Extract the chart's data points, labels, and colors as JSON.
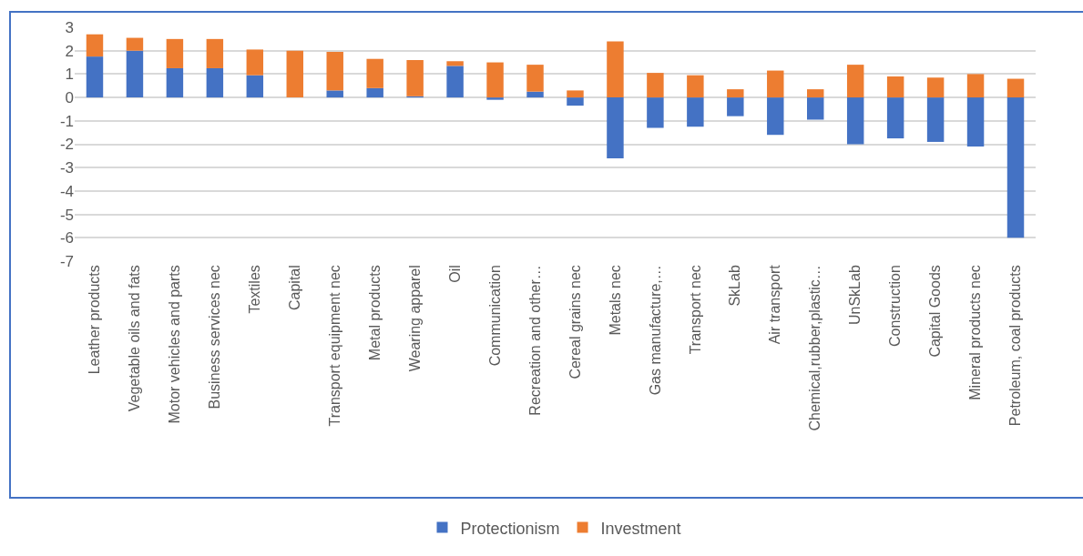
{
  "chart_data": {
    "type": "bar",
    "stacked": true,
    "categories": [
      "Leather products",
      "Vegetable oils and fats",
      "Motor vehicles and parts",
      "Business services nec",
      "Textiles",
      "Capital",
      "Transport equipment nec",
      "Metal products",
      "Wearing apparel",
      "Oil",
      "Communication",
      "Recreation and other…",
      "Cereal grains nec",
      "Metals nec",
      "Gas manufacture,…",
      "Transport nec",
      "SkLab",
      "Air transport",
      "Chemical,rubber,plastic…",
      "UnSkLab",
      "Construction",
      "Capital Goods",
      "Mineral products nec",
      "Petroleum, coal products"
    ],
    "series": [
      {
        "name": "Protectionism",
        "color": "#4472c4",
        "values": [
          1.75,
          2.0,
          1.25,
          1.25,
          0.95,
          0,
          0.3,
          0.4,
          0.05,
          1.35,
          -0.1,
          0.25,
          -0.35,
          -2.6,
          -1.3,
          -1.25,
          -0.8,
          -1.6,
          -0.95,
          -2.0,
          -1.75,
          -1.9,
          -2.1,
          -6.0
        ]
      },
      {
        "name": "Investment",
        "color": "#ed7d31",
        "values": [
          0.95,
          0.55,
          1.25,
          1.25,
          1.1,
          2.0,
          1.65,
          1.25,
          1.55,
          0.2,
          1.5,
          1.15,
          0.3,
          2.4,
          1.05,
          0.95,
          0.35,
          1.15,
          0.35,
          1.4,
          0.9,
          0.85,
          1.0,
          0.8
        ]
      }
    ],
    "ylim": [
      -7,
      3
    ],
    "yticks": [
      -7,
      -6,
      -5,
      -4,
      -3,
      -2,
      -1,
      0,
      1,
      2,
      3
    ],
    "grid": "y",
    "legend": "bottom"
  }
}
